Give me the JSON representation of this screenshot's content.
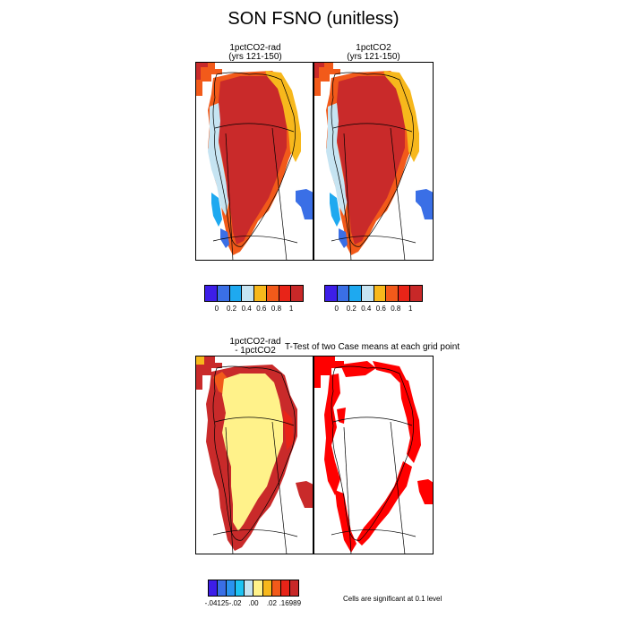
{
  "title": "SON FSNO (unitless)",
  "panels": {
    "top_left": {
      "title_line1": "1pctCO2-rad",
      "title_line2": "(yrs 121-150)"
    },
    "top_right": {
      "title_line1": "1pctCO2",
      "title_line2": "(yrs 121-150)"
    },
    "bottom_left": {
      "title_line1": "1pctCO2-rad",
      "title_line2": "- 1pctCO2"
    },
    "ttest_title": "T-Test of two Case means at each grid point"
  },
  "colorbars": {
    "top_left": {
      "colors": [
        "#3d1ee8",
        "#3a6fe6",
        "#1ea9f0",
        "#c6e4f2",
        "#f7b81c",
        "#f25a1a",
        "#e82418",
        "#c82828"
      ],
      "ticks": [
        "0",
        "0.2",
        "0.4",
        "0.6",
        "0.8",
        "1"
      ]
    },
    "top_right": {
      "colors": [
        "#3d1ee8",
        "#3a6fe6",
        "#1ea9f0",
        "#c6e4f2",
        "#f7b81c",
        "#f25a1a",
        "#e82418",
        "#c82828"
      ],
      "ticks": [
        "0",
        "0.2",
        "0.4",
        "0.6",
        "0.8",
        "1"
      ]
    },
    "difference": {
      "colors": [
        "#3d1ee8",
        "#3a6fe6",
        "#2a93ef",
        "#1ec3f3",
        "#c6e4f2",
        "#fff28a",
        "#f7b81c",
        "#f25a1a",
        "#e82418",
        "#c82828"
      ],
      "ticks": [
        "-.04125",
        "-.02",
        ".00",
        ".02",
        ".16989"
      ]
    }
  },
  "significance_note": "Cells are significant at 0.1 level",
  "map_colors": {
    "deep_red": "#c92a2a",
    "red": "#e82418",
    "orange": "#f25a1a",
    "gold": "#f7b81c",
    "pale_blue": "#c6e4f2",
    "light_blue": "#1ea9f0",
    "mid_blue": "#3a6fe6",
    "pale_yellow": "#fff28a",
    "sig_red": "#ff0000"
  }
}
